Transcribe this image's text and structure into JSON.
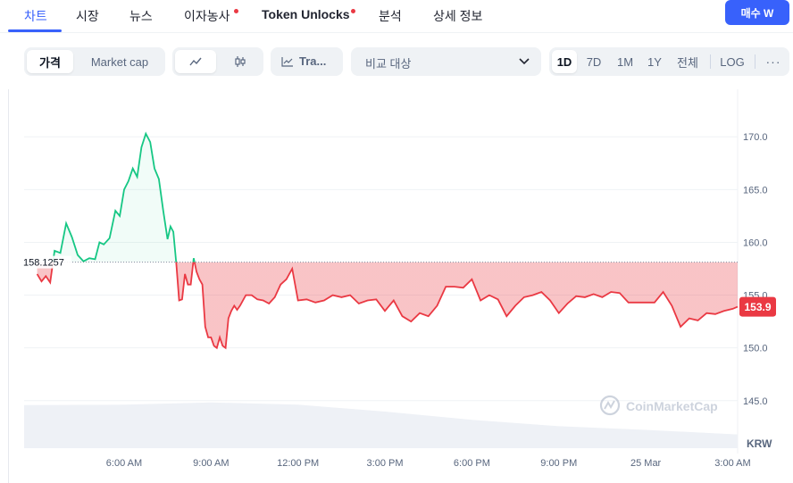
{
  "tabs": [
    {
      "label": "차트",
      "active": true
    },
    {
      "label": "시장"
    },
    {
      "label": "뉴스"
    },
    {
      "label": "이자농사",
      "dot": true
    },
    {
      "label": "Token Unlocks",
      "dot": true,
      "bold": true
    },
    {
      "label": "분석"
    },
    {
      "label": "상세 정보"
    }
  ],
  "buy_button": "매수 W",
  "toolbar": {
    "metric": {
      "price": "가격",
      "market_cap": "Market cap",
      "selected": "price"
    },
    "chart_style": {
      "line_icon": "line-chart-icon",
      "candle_icon": "candlestick-icon",
      "selected": "line"
    },
    "tradingview": {
      "label": "Tra...",
      "icon": "tradingview-icon"
    },
    "compare": {
      "placeholder": "비교 대상",
      "icon": "chevron-down-icon"
    },
    "ranges": [
      "1D",
      "7D",
      "1M",
      "1Y",
      "전체"
    ],
    "range_selected": "1D",
    "log": "LOG",
    "more_icon": "more-icon"
  },
  "colors": {
    "up": "#16c784",
    "down": "#ea3943",
    "accent": "#3861fb",
    "grid": "#eff2f5",
    "volume": "#eef1f6"
  },
  "chart_data": {
    "type": "area",
    "currency": "KRW",
    "baseline": 158.1257,
    "baseline_label": "158.1257",
    "last_price_label": "153.9",
    "y_ticks": [
      145.0,
      150.0,
      155.0,
      160.0,
      165.0,
      170.0
    ],
    "y_tick_labels": [
      "145.0",
      "150.0",
      "155.0",
      "160.0",
      "165.0",
      "170.0"
    ],
    "ylim": [
      140.5,
      174.5
    ],
    "x_tick_labels": [
      "6:00 AM",
      "9:00 AM",
      "12:00 PM",
      "3:00 PM",
      "6:00 PM",
      "9:00 PM",
      "25 Mar",
      "3:00 AM"
    ],
    "x_tick_hours": [
      6,
      9,
      12,
      15,
      18,
      21,
      24,
      27
    ],
    "x_range_hours": [
      2.55,
      27.17
    ],
    "watermark": "CoinMarketCap",
    "series": [
      {
        "x": [
          3.0,
          3.15,
          3.3,
          3.45,
          3.6,
          3.8,
          4.0,
          4.2,
          4.4,
          4.6,
          4.8,
          5.0,
          5.15,
          5.3,
          5.5,
          5.7,
          5.85,
          6.0,
          6.15,
          6.3,
          6.45,
          6.6,
          6.75,
          6.9,
          7.05,
          7.2,
          7.35,
          7.5,
          7.6,
          7.7,
          7.8,
          7.9,
          8.0,
          8.1,
          8.2,
          8.3,
          8.4,
          8.5,
          8.6,
          8.7,
          8.8,
          8.9,
          9.0,
          9.1,
          9.2,
          9.3,
          9.4,
          9.5,
          9.6,
          9.7,
          9.8,
          9.9,
          10.0,
          10.2,
          10.4,
          10.6,
          10.8,
          11.0,
          11.2,
          11.4,
          11.6,
          11.8,
          12.0,
          12.3,
          12.6,
          12.9,
          13.2,
          13.5,
          13.8,
          14.1,
          14.4,
          14.7,
          15.0,
          15.3,
          15.6,
          15.9,
          16.2,
          16.5,
          16.8,
          17.1,
          17.4,
          17.7,
          18.0,
          18.3,
          18.6,
          18.9,
          19.2,
          19.5,
          19.8,
          20.1,
          20.4,
          20.7,
          21.0,
          21.3,
          21.6,
          21.9,
          22.2,
          22.5,
          22.8,
          23.1,
          23.4,
          23.7,
          24.0,
          24.3,
          24.6,
          24.9,
          25.2,
          25.5,
          25.8,
          26.1,
          26.4,
          26.7,
          27.0,
          27.17
        ],
        "y": [
          157.0,
          156.3,
          156.8,
          156.2,
          159.2,
          159.0,
          161.8,
          160.5,
          158.8,
          158.2,
          158.5,
          158.4,
          160.0,
          159.8,
          160.4,
          163.0,
          162.5,
          165.0,
          165.8,
          167.0,
          166.2,
          169.0,
          170.3,
          169.5,
          167.0,
          166.0,
          163.0,
          160.3,
          161.5,
          161.0,
          158.0,
          154.5,
          154.6,
          157.0,
          156.0,
          156.0,
          158.5,
          157.2,
          156.5,
          156.0,
          152.0,
          151.0,
          151.0,
          150.2,
          150.0,
          151.0,
          150.2,
          150.0,
          152.8,
          153.5,
          154.0,
          153.6,
          154.0,
          155.0,
          155.0,
          154.6,
          154.5,
          154.2,
          154.8,
          156.0,
          156.5,
          157.5,
          154.5,
          154.6,
          154.3,
          154.5,
          155.0,
          154.8,
          155.0,
          154.2,
          154.5,
          154.6,
          153.5,
          154.5,
          153.0,
          152.5,
          153.3,
          153.0,
          154.0,
          155.8,
          155.8,
          155.7,
          156.5,
          154.5,
          155.0,
          154.6,
          153.0,
          154.0,
          154.8,
          155.0,
          155.3,
          154.5,
          153.3,
          154.2,
          154.9,
          154.8,
          155.1,
          154.8,
          155.3,
          155.2,
          154.3,
          154.3,
          154.3,
          154.3,
          155.3,
          154.0,
          152.0,
          152.8,
          152.6,
          153.3,
          153.2,
          153.5,
          153.7,
          153.9
        ]
      }
    ],
    "volume": {
      "x": [
        2.55,
        6.0,
        9.0,
        12.0,
        15.0,
        18.0,
        21.0,
        24.0,
        27.17
      ],
      "values": [
        0.94,
        0.95,
        1.0,
        0.95,
        0.8,
        0.62,
        0.48,
        0.4,
        0.3
      ]
    }
  }
}
